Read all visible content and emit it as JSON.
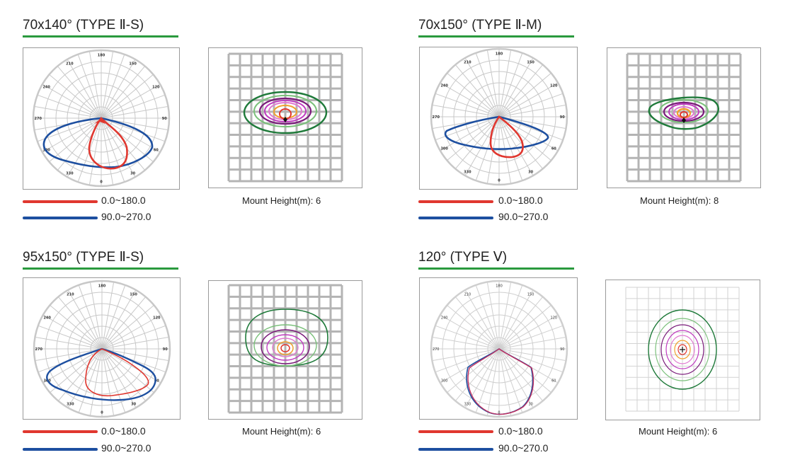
{
  "colors": {
    "accent": "#2a9a3e",
    "red": "#e0372f",
    "blue": "#1d4fa0",
    "grid": "#c8c8c8",
    "iso_grid": "#b4b4b4"
  },
  "legend": {
    "red_label": "0.0~180.0",
    "blue_label": "90.0~270.0"
  },
  "mount_prefix": "Mount Height(m):",
  "panels": [
    {
      "title": "70x140°  (TYPE Ⅱ-S)",
      "mount_height": "6",
      "polar_labels": [
        "180",
        "210",
        "150",
        "240",
        "120",
        "270",
        "90",
        "300",
        "60",
        "330",
        "30",
        "0"
      ]
    },
    {
      "title": "70x150°  (TYPE Ⅱ-M)",
      "mount_height": "8",
      "polar_labels": [
        "180",
        "210",
        "150",
        "240",
        "120",
        "270",
        "90",
        "300",
        "60",
        "330",
        "30",
        "0"
      ]
    },
    {
      "title": "95x150°  (TYPE Ⅱ-S)",
      "mount_height": "6",
      "polar_labels": [
        "180",
        "210",
        "150",
        "240",
        "120",
        "270",
        "90",
        "300",
        "60",
        "330",
        "30",
        "0"
      ]
    },
    {
      "title": "120°  (TYPE Ⅴ)",
      "mount_height": "6",
      "polar_labels": [
        "180",
        "210",
        "150",
        "240",
        "120",
        "270",
        "90",
        "300",
        "60",
        "330",
        "30",
        "0"
      ]
    }
  ]
}
